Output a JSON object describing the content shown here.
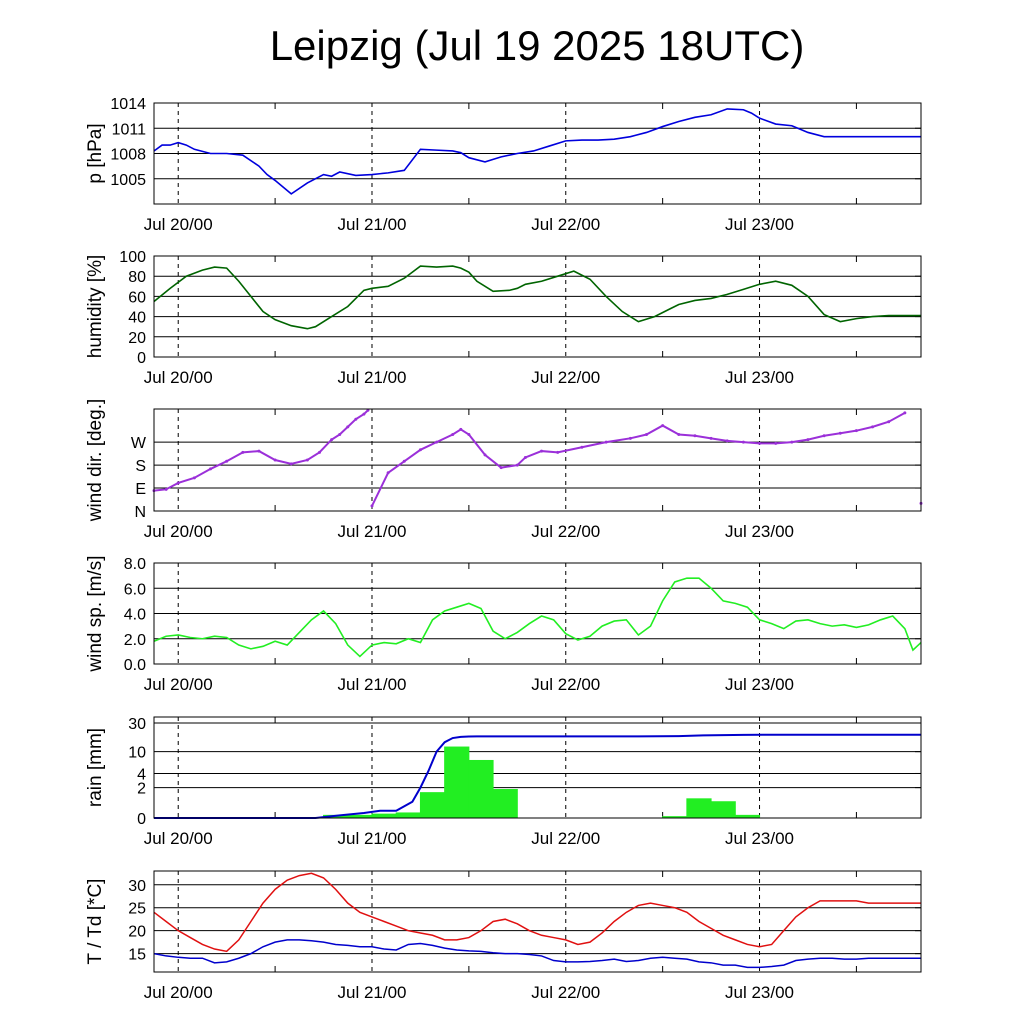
{
  "title": "Leipzig (Jul 19 2025 18UTC)",
  "colors": {
    "pressure": "#0000dd",
    "humidity": "#006400",
    "wind_dir": "#9b30d9",
    "wind_speed": "#22ee22",
    "rain_cumulative": "#0000cc",
    "rain_bars": "#22ee22",
    "temperature": "#e01010",
    "dewpoint": "#0000cc"
  },
  "chart_data": [
    {
      "type": "line",
      "ylabel": "p [hPa]",
      "xticks": [
        "Jul 20/00",
        "Jul 21/00",
        "Jul 22/00",
        "Jul 23/00"
      ],
      "yticks": [
        "1005",
        "1008",
        "1011",
        "1014"
      ],
      "ylim": [
        1002,
        1014
      ],
      "x_unit": "hours after Jul 19 18UTC",
      "x": [
        0,
        2,
        4,
        6,
        8,
        10,
        14,
        18,
        22,
        26,
        28,
        30,
        34,
        38,
        42,
        44,
        46,
        50,
        54,
        58,
        62,
        66,
        70,
        74,
        76,
        78,
        82,
        84,
        86,
        90,
        94,
        98,
        102,
        106,
        110,
        114,
        118,
        122,
        126,
        130,
        134,
        138,
        142,
        146,
        148,
        150,
        154,
        158,
        162,
        166,
        170,
        174,
        178,
        182,
        186,
        190
      ],
      "values": [
        1008.3,
        1009.0,
        1009.0,
        1009.3,
        1009.0,
        1008.5,
        1008.0,
        1008.0,
        1007.8,
        1006.5,
        1005.5,
        1004.8,
        1003.2,
        1004.5,
        1005.5,
        1005.3,
        1005.8,
        1005.4,
        1005.5,
        1005.7,
        1006.0,
        1008.5,
        1008.4,
        1008.3,
        1008.1,
        1007.5,
        1007.0,
        1007.3,
        1007.6,
        1008.0,
        1008.3,
        1008.9,
        1009.5,
        1009.6,
        1009.6,
        1009.7,
        1010.0,
        1010.5,
        1011.2,
        1011.8,
        1012.3,
        1012.6,
        1013.3,
        1013.2,
        1012.8,
        1012.2,
        1011.5,
        1011.3,
        1010.5,
        1010.0,
        1010.0,
        1010.0,
        1010.0,
        1010.0,
        1010.0,
        1010.0
      ],
      "series_name": "",
      "grid": true
    },
    {
      "type": "line",
      "ylabel": "humidity [%]",
      "xticks": [
        "Jul 20/00",
        "Jul 21/00",
        "Jul 22/00",
        "Jul 23/00"
      ],
      "yticks": [
        "0",
        "20",
        "40",
        "60",
        "80",
        "100"
      ],
      "ylim": [
        0,
        100
      ],
      "x": [
        0,
        4,
        8,
        12,
        15,
        18,
        21,
        24,
        27,
        30,
        34,
        38,
        40,
        44,
        48,
        52,
        54,
        56,
        58,
        62,
        66,
        70,
        74,
        76,
        78,
        80,
        84,
        88,
        90,
        92,
        96,
        100,
        104,
        108,
        112,
        116,
        120,
        124,
        128,
        130,
        134,
        138,
        142,
        146,
        150,
        154,
        158,
        162,
        166,
        170,
        174,
        178,
        182,
        186,
        190
      ],
      "values": [
        55,
        68,
        80,
        86,
        89,
        88,
        75,
        60,
        45,
        37,
        31,
        28,
        30,
        40,
        50,
        66,
        68,
        69,
        70,
        78,
        90,
        89,
        90,
        88,
        84,
        75,
        65,
        66,
        68,
        72,
        75,
        80,
        85,
        77,
        60,
        45,
        35,
        40,
        48,
        52,
        56,
        58,
        62,
        67,
        72,
        75,
        71,
        60,
        42,
        35,
        38,
        40,
        41,
        41,
        41
      ],
      "grid": true
    },
    {
      "type": "scatter",
      "ylabel": "wind dir. [deg.]",
      "xticks": [
        "Jul 20/00",
        "Jul 21/00",
        "Jul 22/00",
        "Jul 23/00"
      ],
      "yticks": [
        "N",
        "E",
        "S",
        "W"
      ],
      "ylim": [
        0,
        400
      ],
      "x": [
        0,
        3,
        6,
        10,
        14,
        18,
        22,
        26,
        30,
        34,
        38,
        41,
        44,
        46,
        48,
        50,
        52,
        53,
        54,
        58,
        62,
        66,
        70,
        74,
        76,
        78,
        82,
        86,
        90,
        92,
        96,
        100,
        106,
        112,
        118,
        122,
        126,
        130,
        134,
        138,
        142,
        146,
        150,
        154,
        158,
        162,
        166,
        170,
        174,
        178,
        182,
        186,
        190
      ],
      "values": [
        80,
        85,
        110,
        130,
        165,
        195,
        230,
        235,
        200,
        185,
        200,
        230,
        280,
        300,
        330,
        360,
        380,
        395,
        20,
        150,
        195,
        240,
        270,
        300,
        320,
        300,
        220,
        170,
        180,
        210,
        235,
        230,
        250,
        270,
        285,
        300,
        335,
        300,
        295,
        285,
        275,
        270,
        265,
        265,
        270,
        280,
        295,
        305,
        315,
        330,
        350,
        385,
        30
      ],
      "grid": true
    },
    {
      "type": "line",
      "ylabel": "wind sp. [m/s]",
      "xticks": [
        "Jul 20/00",
        "Jul 21/00",
        "Jul 22/00",
        "Jul 23/00"
      ],
      "yticks": [
        "0.0",
        "2.0",
        "4.0",
        "6.0",
        "8.0"
      ],
      "ylim": [
        0,
        8
      ],
      "x": [
        0,
        3,
        6,
        9,
        12,
        15,
        18,
        21,
        24,
        27,
        30,
        33,
        36,
        39,
        42,
        45,
        48,
        51,
        54,
        57,
        60,
        63,
        66,
        69,
        72,
        75,
        78,
        81,
        84,
        87,
        90,
        93,
        96,
        99,
        102,
        105,
        108,
        111,
        114,
        117,
        120,
        123,
        126,
        129,
        132,
        135,
        138,
        141,
        144,
        147,
        150,
        153,
        156,
        159,
        162,
        165,
        168,
        171,
        174,
        177,
        180,
        183,
        186,
        188,
        190
      ],
      "values": [
        1.8,
        2.2,
        2.3,
        2.1,
        2.0,
        2.2,
        2.1,
        1.5,
        1.2,
        1.4,
        1.8,
        1.5,
        2.5,
        3.5,
        4.2,
        3.2,
        1.5,
        0.6,
        1.5,
        1.7,
        1.6,
        2.0,
        1.7,
        3.5,
        4.2,
        4.5,
        4.8,
        4.4,
        2.6,
        2.0,
        2.5,
        3.2,
        3.8,
        3.5,
        2.4,
        1.9,
        2.2,
        3.0,
        3.4,
        3.5,
        2.3,
        3.0,
        5.0,
        6.5,
        6.8,
        6.8,
        6.0,
        5.0,
        4.8,
        4.5,
        3.5,
        3.2,
        2.8,
        3.4,
        3.5,
        3.2,
        3.0,
        3.1,
        2.9,
        3.1,
        3.5,
        3.8,
        2.8,
        1.1,
        1.7
      ],
      "grid": true
    },
    {
      "type": "bar",
      "ylabel": "rain [mm]",
      "xticks": [
        "Jul 20/00",
        "Jul 21/00",
        "Jul 22/00",
        "Jul 23/00"
      ],
      "yticks": [
        "0",
        "2",
        "4",
        "10",
        "30"
      ],
      "scale": "log1p",
      "ylim": [
        0,
        30
      ],
      "bars_x_start": [
        42,
        48,
        54,
        60,
        66,
        72,
        78,
        84,
        90,
        126,
        132,
        138,
        144,
        150
      ],
      "bars_width_hours": 6,
      "bars_values": [
        0.1,
        0.1,
        0.15,
        0.2,
        1.5,
        12.0,
        7.0,
        1.8,
        0.0,
        0.05,
        1.0,
        0.8,
        0.1,
        0.0
      ],
      "cumulative_x": [
        0,
        40,
        46,
        52,
        56,
        60,
        64,
        66,
        68,
        70,
        72,
        74,
        76,
        78,
        80,
        84,
        100,
        120,
        130,
        136,
        146,
        160,
        180,
        190
      ],
      "cumulative_values": [
        0,
        0,
        0.1,
        0.2,
        0.3,
        0.3,
        0.8,
        2.0,
        4.5,
        10.0,
        14.5,
        17.0,
        17.8,
        18.0,
        18.1,
        18.1,
        18.1,
        18.1,
        18.3,
        18.8,
        19.2,
        19.3,
        19.3,
        19.3
      ],
      "grid": true
    },
    {
      "type": "line",
      "ylabel": "T / Td [*C]",
      "xticks": [
        "Jul 20/00",
        "Jul 21/00",
        "Jul 22/00",
        "Jul 23/00"
      ],
      "yticks": [
        "15",
        "20",
        "25",
        "30"
      ],
      "ylim": [
        11,
        33
      ],
      "x": [
        0,
        3,
        6,
        9,
        12,
        15,
        18,
        21,
        24,
        27,
        30,
        33,
        36,
        39,
        42,
        45,
        48,
        51,
        54,
        57,
        60,
        63,
        66,
        69,
        72,
        75,
        78,
        81,
        84,
        87,
        90,
        93,
        96,
        99,
        102,
        105,
        108,
        111,
        114,
        117,
        120,
        123,
        126,
        129,
        132,
        135,
        138,
        141,
        144,
        147,
        150,
        153,
        156,
        159,
        162,
        165,
        168,
        171,
        174,
        177,
        180,
        183,
        186,
        190
      ],
      "series": [
        {
          "name": "",
          "values": [
            24,
            22,
            20,
            18.5,
            17,
            16,
            15.5,
            18,
            22,
            26,
            29,
            31,
            32,
            32.5,
            31.5,
            29,
            26,
            24,
            23,
            22,
            21,
            20,
            19.5,
            19,
            18,
            18,
            18.5,
            20,
            22,
            22.5,
            21.5,
            20,
            19,
            18.5,
            18,
            17,
            17.5,
            19.5,
            22,
            24,
            25.5,
            26,
            25.5,
            25,
            24,
            22,
            20.5,
            19,
            18,
            17,
            16.5,
            17,
            20,
            23,
            25,
            26.5,
            26.5,
            26.5,
            26.5,
            26,
            26,
            26,
            26,
            26
          ]
        },
        {
          "name": "",
          "values": [
            15,
            14.5,
            14.2,
            14,
            14,
            13,
            13.2,
            14,
            15,
            16.5,
            17.5,
            18,
            18,
            17.8,
            17.5,
            17,
            16.8,
            16.5,
            16.5,
            16,
            15.8,
            17,
            17.2,
            16.8,
            16.2,
            15.8,
            15.6,
            15.5,
            15.2,
            15.0,
            15.0,
            14.8,
            14.5,
            13.5,
            13.2,
            13.2,
            13.3,
            13.5,
            13.8,
            13.3,
            13.5,
            14,
            14.2,
            14.0,
            13.8,
            13.2,
            13.0,
            12.5,
            12.5,
            12.0,
            12.0,
            12.2,
            12.5,
            13.5,
            13.8,
            14.0,
            14.0,
            13.8,
            13.8,
            14.0,
            14.0,
            14.0,
            14.0,
            14.0
          ]
        }
      ],
      "grid": true
    }
  ]
}
